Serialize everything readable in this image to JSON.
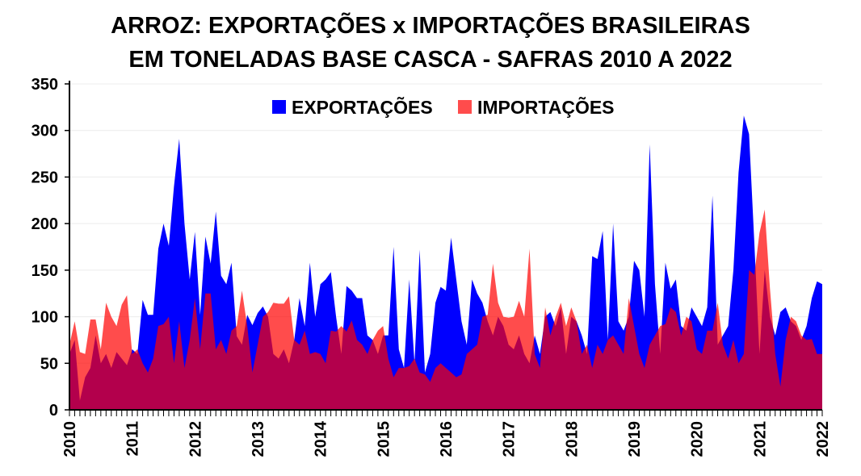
{
  "chart_data": {
    "type": "area",
    "title_line1": "ARROZ: EXPORTAÇÕES x IMPORTAÇÕES BRASILEIRAS",
    "title_line2": "EM TONELADAS BASE CASCA - SAFRAS 2010 A 2022",
    "ylim": [
      0,
      350
    ],
    "yticks": [
      0,
      50,
      100,
      150,
      200,
      250,
      300,
      350
    ],
    "xticks": [
      "2010",
      "2011",
      "2012",
      "2013",
      "2014",
      "2015",
      "2016",
      "2017",
      "2018",
      "2019",
      "2020",
      "2021",
      "2022"
    ],
    "x_start": "2010-01",
    "x_frequency": "monthly",
    "legend_position": "top-center",
    "series": [
      {
        "name": "EXPORTAÇÕES",
        "color": "#0000ff",
        "values": [
          60,
          75,
          10,
          35,
          45,
          80,
          50,
          60,
          45,
          62,
          55,
          48,
          65,
          60,
          118,
          102,
          102,
          173,
          200,
          176,
          240,
          291,
          200,
          140,
          191,
          102,
          186,
          157,
          213,
          144,
          135,
          158,
          79,
          70,
          102,
          91,
          104,
          111,
          100,
          60,
          55,
          65,
          50,
          75,
          120,
          90,
          158,
          100,
          135,
          140,
          148,
          100,
          60,
          133,
          128,
          120,
          120,
          80,
          75,
          60,
          80,
          80,
          175,
          65,
          45,
          140,
          50,
          172,
          40,
          60,
          115,
          132,
          128,
          185,
          140,
          95,
          70,
          140,
          125,
          115,
          95,
          80,
          100,
          90,
          70,
          65,
          80,
          60,
          50,
          80,
          60,
          100,
          105,
          90,
          110,
          60,
          100,
          95,
          80,
          60,
          165,
          162,
          192,
          75,
          200,
          95,
          85,
          100,
          160,
          150,
          100,
          285,
          135,
          60,
          158,
          130,
          140,
          90,
          85,
          110,
          100,
          90,
          110,
          230,
          70,
          80,
          90,
          150,
          255,
          316,
          296,
          180,
          60,
          150,
          100,
          80,
          105,
          110,
          95,
          90,
          75,
          90,
          120,
          138,
          135
        ]
      },
      {
        "name": "IMPORTAÇÕES",
        "color": "#ff0000",
        "values": [
          70,
          95,
          62,
          60,
          97,
          97,
          65,
          115,
          100,
          90,
          113,
          123,
          60,
          65,
          50,
          40,
          55,
          90,
          92,
          100,
          50,
          95,
          45,
          75,
          120,
          65,
          125,
          125,
          65,
          75,
          60,
          85,
          90,
          128,
          90,
          40,
          70,
          100,
          105,
          115,
          114,
          114,
          122,
          75,
          70,
          85,
          60,
          62,
          60,
          50,
          85,
          84,
          90,
          84,
          96,
          75,
          70,
          60,
          75,
          85,
          90,
          55,
          35,
          45,
          45,
          47,
          55,
          40,
          38,
          30,
          45,
          50,
          45,
          40,
          35,
          38,
          60,
          65,
          70,
          100,
          102,
          157,
          115,
          100,
          99,
          100,
          117,
          100,
          173,
          60,
          45,
          110,
          80,
          100,
          115,
          90,
          110,
          95,
          60,
          70,
          45,
          70,
          60,
          75,
          80,
          70,
          60,
          120,
          90,
          60,
          45,
          70,
          80,
          90,
          92,
          110,
          105,
          80,
          100,
          95,
          65,
          60,
          85,
          85,
          115,
          70,
          55,
          75,
          50,
          60,
          150,
          145,
          190,
          215,
          130,
          60,
          25,
          75,
          100,
          95,
          80,
          75,
          76,
          60,
          60
        ]
      }
    ]
  }
}
